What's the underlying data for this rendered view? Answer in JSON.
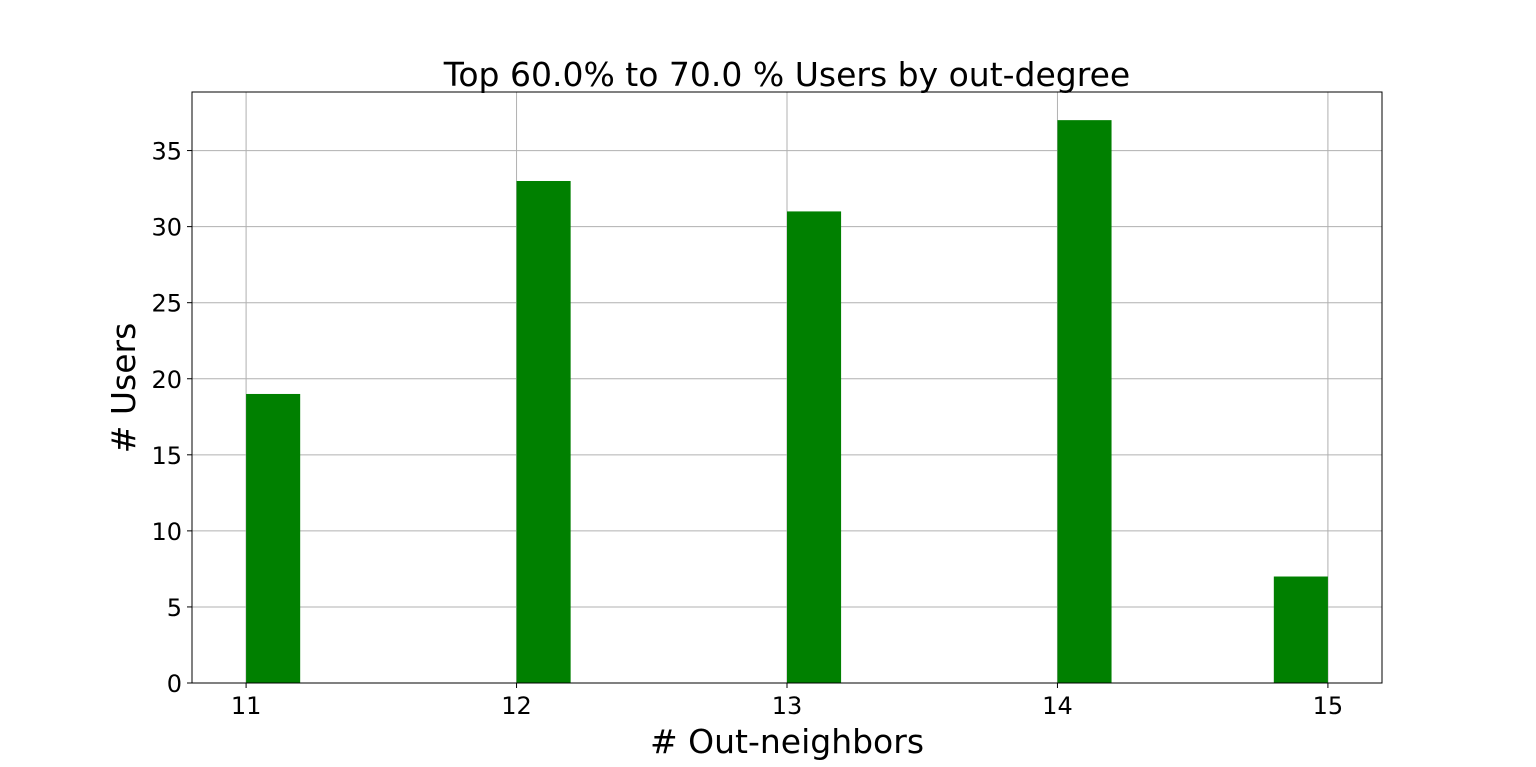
{
  "chart_data": {
    "type": "bar",
    "title": "Top 60.0%  to 70.0 % Users by out-degree",
    "xlabel": "# Out-neighbors",
    "ylabel": "# Users",
    "bars": [
      {
        "x_start": 11.0,
        "x_end": 11.2,
        "value": 19
      },
      {
        "x_start": 12.0,
        "x_end": 12.2,
        "value": 33
      },
      {
        "x_start": 13.0,
        "x_end": 13.2,
        "value": 31
      },
      {
        "x_start": 14.0,
        "x_end": 14.2,
        "value": 37
      },
      {
        "x_start": 14.8,
        "x_end": 15.0,
        "value": 7
      }
    ],
    "xlim": [
      10.8,
      15.2
    ],
    "ylim": [
      0,
      38.85
    ],
    "x_ticks": [
      "11",
      "12",
      "13",
      "14",
      "15"
    ],
    "y_ticks": [
      "0",
      "5",
      "10",
      "15",
      "20",
      "25",
      "30",
      "35"
    ],
    "grid": true,
    "bar_color": "#008000",
    "grid_color": "#b0b0b0"
  }
}
